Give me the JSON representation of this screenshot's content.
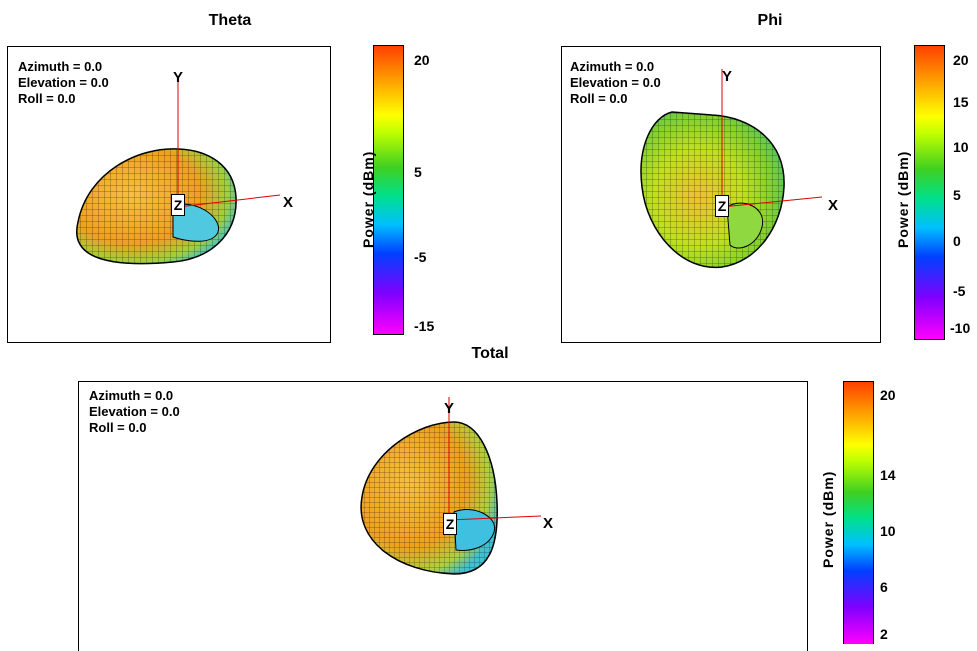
{
  "chart_data": [
    {
      "type": "3d-radiation-pattern",
      "title": "Theta",
      "view": {
        "azimuth": "Azimuth = 0.0",
        "elevation": "Elevation = 0.0",
        "roll": "Roll = 0.0"
      },
      "axes": {
        "x": "X",
        "y": "Y",
        "z": "Z"
      },
      "colorbar": {
        "label": "Power  (dBm)",
        "ticks": [
          "20",
          "5",
          "-5",
          "-15"
        ],
        "range": [
          -20,
          25
        ]
      }
    },
    {
      "type": "3d-radiation-pattern",
      "title": "Phi",
      "view": {
        "azimuth": "Azimuth = 0.0",
        "elevation": "Elevation = 0.0",
        "roll": "Roll = 0.0"
      },
      "axes": {
        "x": "X",
        "y": "Y",
        "z": "Z"
      },
      "colorbar": {
        "label": "Power  (dBm)",
        "ticks": [
          "20",
          "15",
          "10",
          "5",
          "0",
          "-5",
          "-10"
        ],
        "range": [
          -12,
          22
        ]
      }
    },
    {
      "type": "3d-radiation-pattern",
      "title": "Total",
      "view": {
        "azimuth": "Azimuth = 0.0",
        "elevation": "Elevation = 0.0",
        "roll": "Roll = 0.0"
      },
      "axes": {
        "x": "X",
        "y": "Y",
        "z": "Z"
      },
      "colorbar": {
        "label": "Power  (dBm)",
        "ticks": [
          "20",
          "14",
          "10",
          "6",
          "2"
        ],
        "range": [
          0,
          22
        ]
      }
    }
  ],
  "colors": {
    "axis": "#e00000",
    "mesh": "#000000",
    "warm": "#f0a000",
    "mid": "#a0e030",
    "cool": "#40c0e0"
  }
}
